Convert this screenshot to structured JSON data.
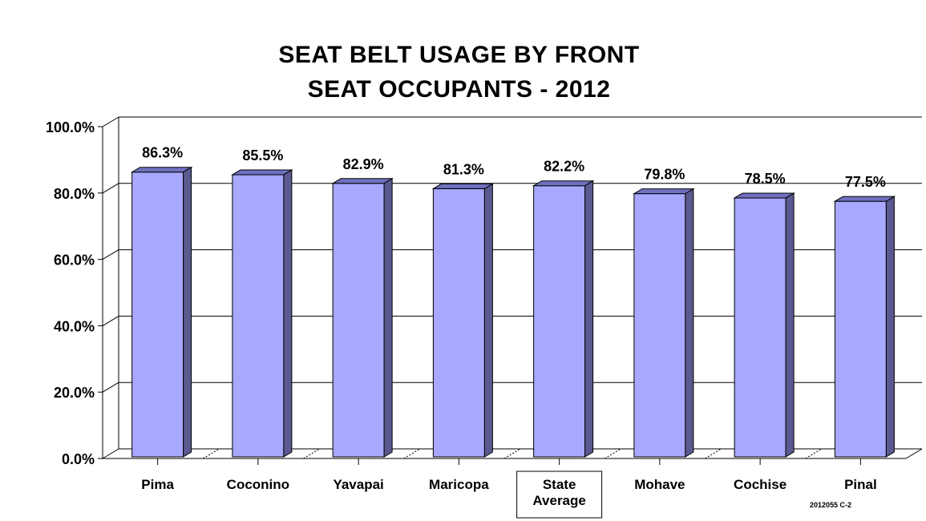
{
  "chart_data": {
    "type": "bar",
    "title": "SEAT BELT USAGE BY FRONT SEAT OCCUPANTS - 2012",
    "title_lines": [
      "SEAT BELT USAGE BY FRONT",
      "SEAT OCCUPANTS - 2012"
    ],
    "categories": [
      "Pima",
      "Coconino",
      "Yavapai",
      "Maricopa",
      "State Average",
      "Mohave",
      "Cochise",
      "Pinal"
    ],
    "category_lines": [
      [
        "Pima"
      ],
      [
        "Coconino"
      ],
      [
        "Yavapai"
      ],
      [
        "Maricopa"
      ],
      [
        "State",
        "Average"
      ],
      [
        "Mohave"
      ],
      [
        "Cochise"
      ],
      [
        "Pinal"
      ]
    ],
    "values": [
      86.3,
      85.5,
      82.9,
      81.3,
      82.2,
      79.8,
      78.5,
      77.5
    ],
    "data_labels": [
      "86.3%",
      "85.5%",
      "82.9%",
      "81.3%",
      "82.2%",
      "79.8%",
      "78.5%",
      "77.5%"
    ],
    "ylim": [
      0,
      100
    ],
    "yticks": [
      0,
      20,
      40,
      60,
      80,
      100
    ],
    "ytick_labels": [
      "0.0%",
      "20.0%",
      "40.0%",
      "60.0%",
      "80.0%",
      "100.0%"
    ],
    "xlabel": "",
    "ylabel": "",
    "grid": true,
    "bar_style": "3d",
    "highlighted_category": "State Average",
    "colors": {
      "bar_front": "#a8a8ff",
      "bar_top": "#7070c0",
      "bar_side": "#5a5a90",
      "grid": "#000000"
    }
  },
  "footnote": "2012055 C-2"
}
